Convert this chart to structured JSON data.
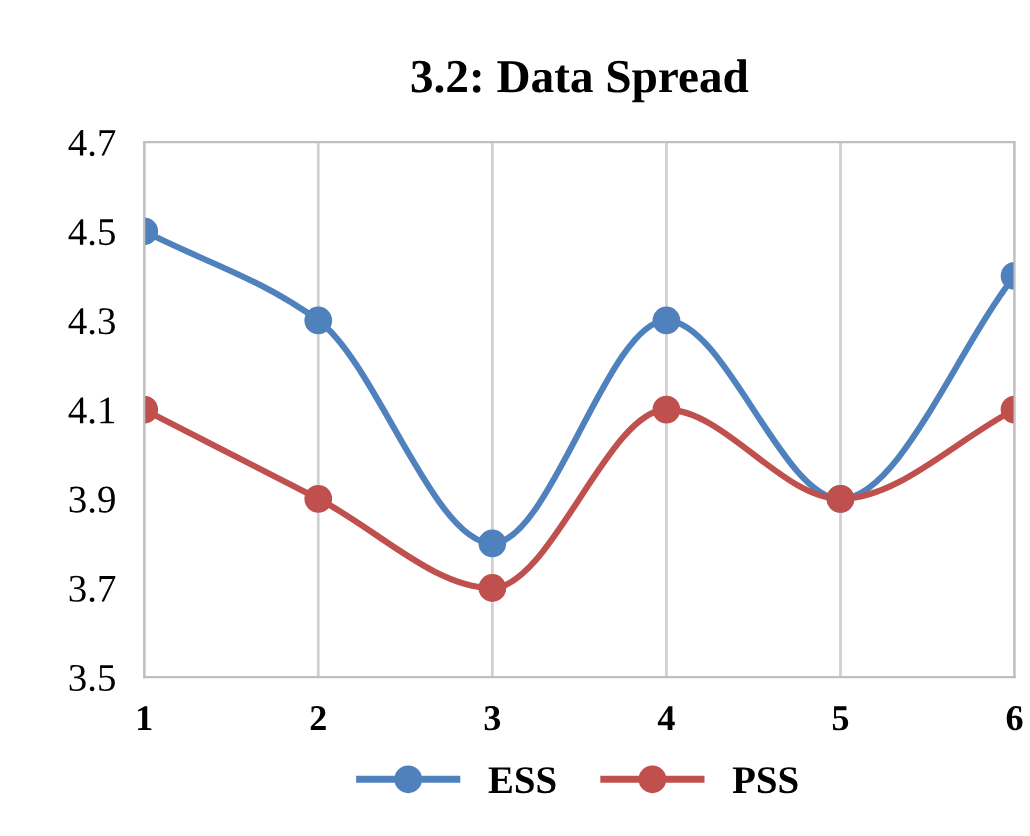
{
  "chart_data": {
    "type": "line",
    "title": "3.2: Data Spread",
    "x": [
      1,
      2,
      3,
      4,
      5,
      6
    ],
    "series": [
      {
        "name": "ESS",
        "color": "#4f81bd",
        "values": [
          4.5,
          4.3,
          3.8,
          4.3,
          3.9,
          4.4
        ]
      },
      {
        "name": "PSS",
        "color": "#c0504d",
        "values": [
          4.1,
          3.9,
          3.7,
          4.1,
          3.9,
          4.1
        ]
      }
    ],
    "xlim": [
      1,
      6
    ],
    "xticks": [
      1,
      2,
      3,
      4,
      5,
      6
    ],
    "ylim": [
      3.5,
      4.7
    ],
    "yticks": [
      {
        "value": 3.5,
        "label": "3.5"
      },
      {
        "value": 3.7,
        "label": "3.7"
      },
      {
        "value": 3.9,
        "label": "3.9"
      },
      {
        "value": 4.1,
        "label": "4.1"
      },
      {
        "value": 4.3,
        "label": "4.3"
      },
      {
        "value": 4.5,
        "label": "4.5"
      },
      {
        "value": 4.7,
        "label": "4.7"
      }
    ],
    "grid": "x",
    "legend": "bottom",
    "marker": "circle",
    "line_style": "solid"
  }
}
